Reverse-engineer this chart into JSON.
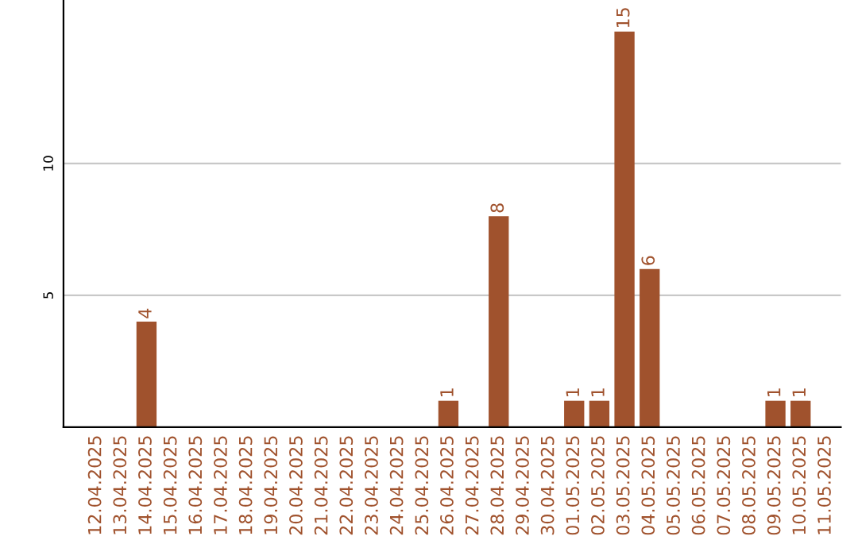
{
  "chart_data": {
    "type": "bar",
    "categories": [
      "12.04.2025",
      "13.04.2025",
      "14.04.2025",
      "15.04.2025",
      "16.04.2025",
      "17.04.2025",
      "18.04.2025",
      "19.04.2025",
      "20.04.2025",
      "21.04.2025",
      "22.04.2025",
      "23.04.2025",
      "24.04.2025",
      "25.04.2025",
      "26.04.2025",
      "27.04.2025",
      "28.04.2025",
      "29.04.2025",
      "30.04.2025",
      "01.05.2025",
      "02.05.2025",
      "03.05.2025",
      "04.05.2025",
      "05.05.2025",
      "06.05.2025",
      "07.05.2025",
      "08.05.2025",
      "09.05.2025",
      "10.05.2025",
      "11.05.2025"
    ],
    "values": [
      0,
      0,
      4,
      0,
      0,
      0,
      0,
      0,
      0,
      0,
      0,
      0,
      0,
      0,
      1,
      0,
      8,
      0,
      0,
      1,
      1,
      15,
      6,
      0,
      0,
      0,
      0,
      1,
      1,
      0
    ],
    "value_labels": [
      null,
      null,
      "4",
      null,
      null,
      null,
      null,
      null,
      null,
      null,
      null,
      null,
      null,
      null,
      "1",
      null,
      "8",
      null,
      null,
      "1",
      "1",
      "15",
      "6",
      null,
      null,
      null,
      null,
      "1",
      "1",
      null
    ],
    "color": "#a0522d",
    "ylim": [
      0,
      16.2
    ],
    "yticks": [
      5,
      10
    ],
    "grid": "y"
  }
}
